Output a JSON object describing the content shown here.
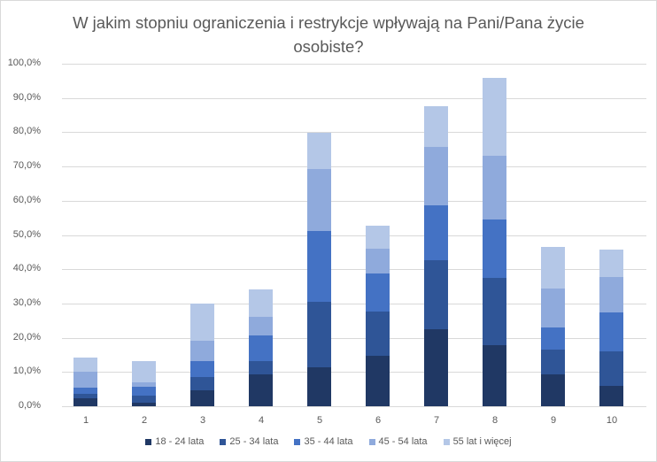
{
  "chart_data": {
    "type": "bar",
    "stacked": true,
    "title": "W jakim stopniu ograniczenia i restrykcje wpływają na Pani/Pana życie osobiste?",
    "title_lines": [
      "W jakim stopniu ograniczenia i restrykcje wpływają na Pani/Pana życie",
      "osobiste?"
    ],
    "xlabel": "",
    "ylabel": "",
    "ylim": [
      0,
      100
    ],
    "yticks": [
      "0,0%",
      "10,0%",
      "20,0%",
      "30,0%",
      "40,0%",
      "50,0%",
      "60,0%",
      "70,0%",
      "80,0%",
      "90,0%",
      "100,0%"
    ],
    "categories": [
      "1",
      "2",
      "3",
      "4",
      "5",
      "6",
      "7",
      "8",
      "9",
      "10"
    ],
    "grid": true,
    "legend_position": "bottom",
    "series": [
      {
        "name": "18 - 24 lata",
        "color": "#203864",
        "values": [
          2.3,
          1.1,
          4.6,
          9.3,
          11.4,
          14.7,
          22.5,
          17.8,
          9.3,
          5.9
        ]
      },
      {
        "name": "25 - 34 lata",
        "color": "#2f5597",
        "values": [
          1.3,
          2.0,
          3.9,
          3.9,
          19.1,
          12.9,
          20.1,
          19.7,
          7.2,
          10.1
        ]
      },
      {
        "name": "35 - 44 lata",
        "color": "#4472c4",
        "values": [
          1.8,
          2.6,
          4.7,
          7.5,
          20.7,
          11.2,
          16.1,
          17.0,
          6.5,
          11.4
        ]
      },
      {
        "name": "45 - 54 lata",
        "color": "#8faadc",
        "values": [
          4.6,
          1.3,
          5.9,
          5.4,
          18.1,
          7.2,
          17.0,
          18.6,
          11.4,
          10.3
        ]
      },
      {
        "name": "55 lat i więcej",
        "color": "#b4c7e7",
        "values": [
          4.2,
          6.3,
          10.9,
          8.0,
          10.5,
          6.7,
          11.9,
          22.8,
          12.1,
          8.0
        ]
      }
    ]
  }
}
